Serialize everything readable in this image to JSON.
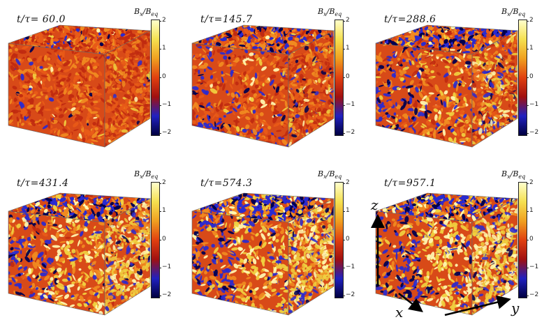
{
  "panels": [
    {
      "time_label": "t/τ= 60.0",
      "blue_fraction": 0.05,
      "yellow_fraction": 0.04
    },
    {
      "time_label": "t/τ=145.7",
      "blue_fraction": 0.22,
      "yellow_fraction": 0.1
    },
    {
      "time_label": "t/τ=288.6",
      "blue_fraction": 0.3,
      "yellow_fraction": 0.25
    },
    {
      "time_label": "t/τ=431.4",
      "blue_fraction": 0.3,
      "yellow_fraction": 0.45
    },
    {
      "time_label": "t/τ=574.3",
      "blue_fraction": 0.35,
      "yellow_fraction": 0.5
    },
    {
      "time_label": "t/τ=957.1",
      "blue_fraction": 0.35,
      "yellow_fraction": 0.55
    }
  ],
  "colorbar": {
    "title_main": "B",
    "title_sub": "x",
    "title_den": "B",
    "title_den_sub": "eq",
    "ticks": [
      "2",
      "1",
      "0",
      "−1",
      "−2"
    ],
    "colors": [
      "#ffffcc",
      "#f5e050",
      "#f0a020",
      "#e04010",
      "#a01010",
      "#2020c0",
      "#000040"
    ]
  },
  "axes": {
    "z": "z",
    "x": "x",
    "y": "y"
  }
}
